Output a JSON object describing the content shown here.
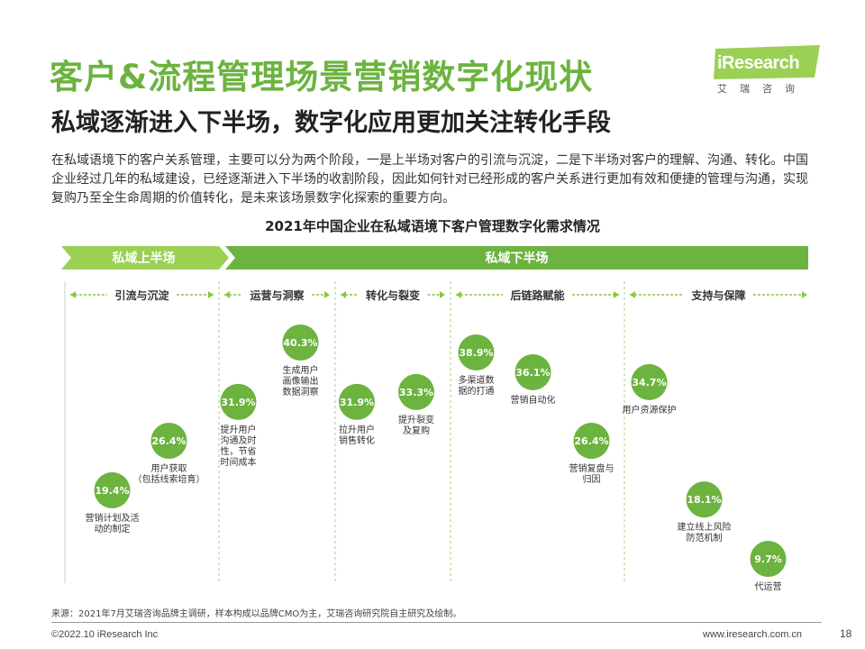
{
  "header": {
    "title": "客户&流程管理场景营销数字化现状",
    "subtitle": "私域逐渐进入下半场，数字化应用更加关注转化手段",
    "description": "在私域语境下的客户关系管理，主要可以分为两个阶段，一是上半场对客户的引流与沉淀，二是下半场对客户的理解、沟通、转化。中国企业经过几年的私域建设，已经逐渐进入下半场的收割阶段，因此如何针对已经形成的客户关系进行更加有效和便捷的管理与沟通，实现复购乃至全生命周期的价值转化，是未来该场景数字化探索的重要方向。"
  },
  "logo": {
    "text": "iResearch",
    "cn": "艾瑞咨询"
  },
  "chart_data": {
    "type": "scatter",
    "title": "2021年中国企业在私域语境下客户管理数字化需求情况",
    "unit": "%",
    "phases": [
      {
        "label": "私域上半场"
      },
      {
        "label": "私域下半场"
      }
    ],
    "stages": [
      {
        "label": "引流与沉淀"
      },
      {
        "label": "运营与洞察"
      },
      {
        "label": "转化与裂变"
      },
      {
        "label": "后链路赋能"
      },
      {
        "label": "支持与保障"
      }
    ],
    "points": [
      {
        "stage": "引流与沉淀",
        "value": 19.4,
        "value_label": "19.4%",
        "label_lines": [
          "营销计划及活",
          "动的制定"
        ]
      },
      {
        "stage": "引流与沉淀",
        "value": 26.4,
        "value_label": "26.4%",
        "label_lines": [
          "用户获取",
          "（包括线索培育）"
        ]
      },
      {
        "stage": "运营与洞察",
        "value": 31.9,
        "value_label": "31.9%",
        "label_lines": [
          "提升用户",
          "沟通及时",
          "性，节省",
          "时间成本"
        ]
      },
      {
        "stage": "运营与洞察",
        "value": 40.3,
        "value_label": "40.3%",
        "label_lines": [
          "生成用户",
          "画像输出",
          "数据洞察"
        ]
      },
      {
        "stage": "转化与裂变",
        "value": 31.9,
        "value_label": "31.9%",
        "label_lines": [
          "拉升用户",
          "销售转化"
        ]
      },
      {
        "stage": "转化与裂变",
        "value": 33.3,
        "value_label": "33.3%",
        "label_lines": [
          "提升裂变",
          "及复购"
        ]
      },
      {
        "stage": "后链路赋能",
        "value": 38.9,
        "value_label": "38.9%",
        "label_lines": [
          "多渠道数",
          "据的打通"
        ]
      },
      {
        "stage": "后链路赋能",
        "value": 36.1,
        "value_label": "36.1%",
        "label_lines": [
          "营销自动化"
        ]
      },
      {
        "stage": "后链路赋能",
        "value": 26.4,
        "value_label": "26.4%",
        "label_lines": [
          "营销复盘与",
          "归因"
        ]
      },
      {
        "stage": "支持与保障",
        "value": 34.7,
        "value_label": "34.7%",
        "label_lines": [
          "用户资源保护"
        ]
      },
      {
        "stage": "支持与保障",
        "value": 18.1,
        "value_label": "18.1%",
        "label_lines": [
          "建立线上风险",
          "防范机制"
        ]
      },
      {
        "stage": "支持与保障",
        "value": 9.7,
        "value_label": "9.7%",
        "label_lines": [
          "代运营"
        ]
      }
    ],
    "colors": {
      "phase1": "#9bd054",
      "phase2": "#6db33f",
      "bubble": "#6cb33f",
      "arrow": "#8cc63f",
      "divider": "#a8d080"
    }
  },
  "footer": {
    "source": "来源：2021年7月艾瑞咨询品牌主调研，样本构成以品牌CMO为主，艾瑞咨询研究院自主研究及绘制。",
    "copyright": "©2022.10 iResearch Inc",
    "website": "www.iresearch.com.cn",
    "page": "18"
  }
}
